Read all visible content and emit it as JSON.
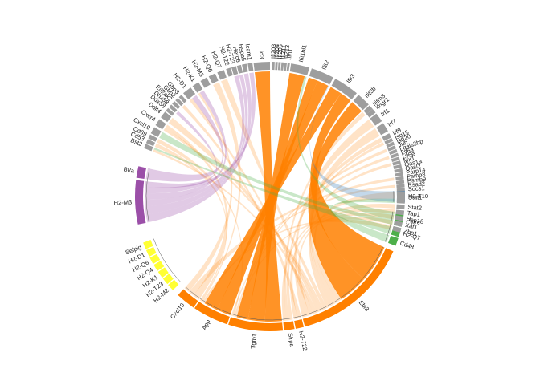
{
  "chart_data": {
    "type": "chord",
    "title": "",
    "grid": false,
    "legend": "none",
    "colors": {
      "receiver": "#9e9e9e",
      "orange": "#ff8000",
      "purple": "#9b4fa8",
      "yellow": "#ffff33",
      "green": "#4daf4a",
      "blue": "#377eb8"
    },
    "sectors": [
      {
        "label": "H2-T10",
        "group": "blue",
        "start": -2.5,
        "end": 2.5
      },
      {
        "label": "Ptprc",
        "group": "green",
        "start": 7,
        "end": 13
      },
      {
        "label": "H2-Q7",
        "group": "green",
        "start": 14,
        "end": 17.5
      },
      {
        "label": "Cd48",
        "group": "green",
        "start": 18,
        "end": 21.5
      },
      {
        "label": "Ebi3",
        "group": "orange",
        "start": 24,
        "end": 75
      },
      {
        "label": "H2-T22",
        "group": "orange",
        "start": 75.5,
        "end": 79
      },
      {
        "label": "Sirpa",
        "group": "orange",
        "start": 79.5,
        "end": 84
      },
      {
        "label": "Tgfb1",
        "group": "orange",
        "start": 84.5,
        "end": 108
      },
      {
        "label": "App",
        "group": "orange",
        "start": 108.5,
        "end": 124
      },
      {
        "label": "Cxcl10",
        "group": "orange",
        "start": 124.5,
        "end": 133
      },
      {
        "label": "H2-M2",
        "group": "yellow",
        "start": 136,
        "end": 139
      },
      {
        "label": "H2-T23",
        "group": "yellow",
        "start": 139.5,
        "end": 142.5
      },
      {
        "label": "H2-K1",
        "group": "yellow",
        "start": 143,
        "end": 146
      },
      {
        "label": "H2-Q4",
        "group": "yellow",
        "start": 146.5,
        "end": 149.5
      },
      {
        "label": "H2-Q6",
        "group": "yellow",
        "start": 150,
        "end": 153
      },
      {
        "label": "H2-D1",
        "group": "yellow",
        "start": 153.5,
        "end": 156.5
      },
      {
        "label": "Selplg",
        "group": "yellow",
        "start": 157,
        "end": 160
      },
      {
        "label": "H2-M3",
        "group": "purple",
        "start": 168,
        "end": 187
      },
      {
        "label": "Bt/a",
        "group": "purple",
        "start": 188,
        "end": 193
      },
      {
        "label": "Bst2",
        "group": "receiver",
        "start": 201,
        "end": 203
      },
      {
        "label": "Cd53",
        "group": "receiver",
        "start": 203.4,
        "end": 205.2
      },
      {
        "label": "Cd69",
        "group": "receiver",
        "start": 205.6,
        "end": 207.4
      },
      {
        "label": "Cxcl10",
        "group": "receiver",
        "start": 208,
        "end": 211
      },
      {
        "label": "Cxcr4",
        "group": "receiver",
        "start": 212,
        "end": 215
      },
      {
        "label": "Ddit4",
        "group": "receiver",
        "start": 216,
        "end": 219
      },
      {
        "label": "Ddx58",
        "group": "receiver",
        "start": 219.5,
        "end": 221
      },
      {
        "label": "Dhx58",
        "group": "receiver",
        "start": 221.5,
        "end": 223
      },
      {
        "label": "Eif2ak2",
        "group": "receiver",
        "start": 223.5,
        "end": 225
      },
      {
        "label": "Gbp2",
        "group": "receiver",
        "start": 225.5,
        "end": 227
      },
      {
        "label": "Gbp3",
        "group": "receiver",
        "start": 227.5,
        "end": 229
      },
      {
        "label": "H2-D1",
        "group": "receiver",
        "start": 230,
        "end": 234
      },
      {
        "label": "H2-K1",
        "group": "receiver",
        "start": 235,
        "end": 238
      },
      {
        "label": "H2-M3",
        "group": "receiver",
        "start": 239,
        "end": 242
      },
      {
        "label": "H2-Q6",
        "group": "receiver",
        "start": 243,
        "end": 246
      },
      {
        "label": "H2-Q7",
        "group": "receiver",
        "start": 247,
        "end": 250
      },
      {
        "label": "H2-T22",
        "group": "receiver",
        "start": 251,
        "end": 253
      },
      {
        "label": "H2-T23",
        "group": "receiver",
        "start": 253.4,
        "end": 255.4
      },
      {
        "label": "Herc6",
        "group": "receiver",
        "start": 255.8,
        "end": 257.6
      },
      {
        "label": "Hspa5",
        "group": "receiver",
        "start": 258,
        "end": 260
      },
      {
        "label": "Icam1",
        "group": "receiver",
        "start": 260.5,
        "end": 262.5
      },
      {
        "label": "Id3",
        "group": "receiver",
        "start": 263,
        "end": 270
      },
      {
        "label": "Ifi203",
        "group": "receiver",
        "start": 271,
        "end": 272
      },
      {
        "label": "Ifi204",
        "group": "receiver",
        "start": 272.3,
        "end": 273.3
      },
      {
        "label": "Ifi205",
        "group": "receiver",
        "start": 273.6,
        "end": 274.6
      },
      {
        "label": "Ifi211",
        "group": "receiver",
        "start": 274.9,
        "end": 275.9
      },
      {
        "label": "Ifi213",
        "group": "receiver",
        "start": 276.2,
        "end": 277.2
      },
      {
        "label": "Ifih1",
        "group": "receiver",
        "start": 277.5,
        "end": 278.5
      },
      {
        "label": "Ifit1bl1",
        "group": "receiver",
        "start": 279,
        "end": 287
      },
      {
        "label": "Ifit2",
        "group": "receiver",
        "start": 288,
        "end": 298
      },
      {
        "label": "Ifit3",
        "group": "receiver",
        "start": 299,
        "end": 310
      },
      {
        "label": "Ifit3b",
        "group": "receiver",
        "start": 311,
        "end": 317
      },
      {
        "label": "Ifitm3",
        "group": "receiver",
        "start": 317.5,
        "end": 319.5
      },
      {
        "label": "Ifngr1",
        "group": "receiver",
        "start": 319.5,
        "end": 321.5
      },
      {
        "label": "Irf1",
        "group": "receiver",
        "start": 322,
        "end": 326
      },
      {
        "label": "Irf7",
        "group": "receiver",
        "start": 327,
        "end": 331
      },
      {
        "label": "Irf9",
        "group": "receiver",
        "start": 332,
        "end": 334
      },
      {
        "label": "Isg15",
        "group": "receiver",
        "start": 334.3,
        "end": 335.7
      },
      {
        "label": "Isg20",
        "group": "receiver",
        "start": 336,
        "end": 337.4
      },
      {
        "label": "Jun",
        "group": "receiver",
        "start": 337.7,
        "end": 339.1
      },
      {
        "label": "Lgals3bp",
        "group": "receiver",
        "start": 339.4,
        "end": 340.8
      },
      {
        "label": "Ly6a",
        "group": "receiver",
        "start": 341.1,
        "end": 342.5
      },
      {
        "label": "Ly6e",
        "group": "receiver",
        "start": 342.8,
        "end": 344.2
      },
      {
        "label": "Mx1",
        "group": "receiver",
        "start": 344.5,
        "end": 345.9
      },
      {
        "label": "Oas1a",
        "group": "receiver",
        "start": 346.2,
        "end": 347.6
      },
      {
        "label": "Oasl2",
        "group": "receiver",
        "start": 347.9,
        "end": 349.3
      },
      {
        "label": "Parp14",
        "group": "receiver",
        "start": 349.6,
        "end": 351
      },
      {
        "label": "Psmb8",
        "group": "receiver",
        "start": 351.3,
        "end": 352.7
      },
      {
        "label": "Psmb9",
        "group": "receiver",
        "start": 353,
        "end": 354.4
      },
      {
        "label": "Rsad2",
        "group": "receiver",
        "start": 354.7,
        "end": 356.1
      },
      {
        "label": "Socs1",
        "group": "receiver",
        "start": 356.4,
        "end": 357.8
      },
      {
        "label": "Stat1",
        "group": "receiver",
        "start": 358,
        "end": 363
      },
      {
        "label": "Stat2",
        "group": "receiver",
        "start": 363.5,
        "end": 365.5
      },
      {
        "label": "Tap1",
        "group": "receiver",
        "start": 366,
        "end": 368
      },
      {
        "label": "Usp18",
        "group": "receiver",
        "start": 368.5,
        "end": 370.5
      },
      {
        "label": "Xaf1",
        "group": "receiver",
        "start": 371,
        "end": 373
      },
      {
        "label": "Zbp1",
        "group": "receiver",
        "start": 373.5,
        "end": 375.5
      }
    ],
    "links": [
      {
        "from": "Tgfb1",
        "to": "Id3",
        "weight": 6
      },
      {
        "from": "Tgfb1",
        "to": "Ifit1bl1",
        "weight": 6
      },
      {
        "from": "Tgfb1",
        "to": "Ifit2",
        "weight": 4
      },
      {
        "from": "App",
        "to": "Ifit2",
        "weight": 5
      },
      {
        "from": "App",
        "to": "Ifit3",
        "weight": 5
      },
      {
        "from": "Ebi3",
        "to": "Ifit3",
        "weight": 5
      },
      {
        "from": "Ebi3",
        "to": "Ifit3b",
        "weight": 4
      },
      {
        "from": "Ebi3",
        "to": "Stat1",
        "weight": 0.6
      },
      {
        "from": "Ebi3",
        "to": "Irf7",
        "weight": 0.6
      },
      {
        "from": "Ebi3",
        "to": "Isg15",
        "weight": 0.5
      },
      {
        "from": "Ebi3",
        "to": "Mx1",
        "weight": 0.5
      },
      {
        "from": "Ebi3",
        "to": "H2-Q7",
        "weight": 0.5
      },
      {
        "from": "Ebi3",
        "to": "Cxcr4",
        "weight": 0.5
      },
      {
        "from": "Ebi3",
        "to": "Ddit4",
        "weight": 0.5
      },
      {
        "from": "Ebi3",
        "to": "Bst2",
        "weight": 0.5
      },
      {
        "from": "Ebi3",
        "to": "H2-D1",
        "weight": 0.5
      },
      {
        "from": "Ebi3",
        "to": "Usp18",
        "weight": 0.5
      },
      {
        "from": "Ebi3",
        "to": "Irf1",
        "weight": 0.5
      },
      {
        "from": "Sirpa",
        "to": "Irf9",
        "weight": 0.5
      },
      {
        "from": "Sirpa",
        "to": "Ifitm3",
        "weight": 0.5
      },
      {
        "from": "Sirpa",
        "to": "Stat2",
        "weight": 0.5
      },
      {
        "from": "H2-T22",
        "to": "Gbp2",
        "weight": 0.5
      },
      {
        "from": "H2-T22",
        "to": "Tap1",
        "weight": 0.5
      },
      {
        "from": "Cxcl10",
        "to": "Cxcr4",
        "weight": 0.6
      },
      {
        "from": "Cxcl10",
        "to": "Psmb8",
        "weight": 0.5
      },
      {
        "from": "Cxcl10",
        "to": "H2-K1",
        "weight": 0.5
      },
      {
        "from": "Tgfb1",
        "to": "Xaf1",
        "weight": 0.5
      },
      {
        "from": "Tgfb1",
        "to": "Ly6a",
        "weight": 0.5
      },
      {
        "from": "Tgfb1",
        "to": "Cd69",
        "weight": 0.5
      },
      {
        "from": "Tgfb1",
        "to": "Jun",
        "weight": 0.5
      },
      {
        "from": "App",
        "to": "Rsad2",
        "weight": 0.5
      },
      {
        "from": "App",
        "to": "Zbp1",
        "weight": 0.5
      },
      {
        "from": "App",
        "to": "H2-Q6",
        "weight": 0.5
      },
      {
        "from": "App",
        "to": "Cd53",
        "weight": 0.5
      },
      {
        "from": "H2-M3",
        "to": "Hspa5",
        "weight": 1.2
      },
      {
        "from": "H2-M3",
        "to": "Herc6",
        "weight": 1.2
      },
      {
        "from": "H2-M3",
        "to": "H2-T23",
        "weight": 1
      },
      {
        "from": "H2-M3",
        "to": "H2-K1",
        "weight": 1
      },
      {
        "from": "H2-M3",
        "to": "Icam1",
        "weight": 1
      },
      {
        "from": "H2-M3",
        "to": "Dhx58",
        "weight": 0.8
      },
      {
        "from": "Bt/a",
        "to": "H2-D1",
        "weight": 0.8
      },
      {
        "from": "Ptprc",
        "to": "Ifit1bl1",
        "weight": 0.8
      },
      {
        "from": "Ptprc",
        "to": "Cxcl10",
        "weight": 0.5
      },
      {
        "from": "H2-Q7",
        "to": "Bst2",
        "weight": 0.4
      },
      {
        "from": "Cd48",
        "to": "Stat1",
        "weight": 0.4
      },
      {
        "from": "H2-T10",
        "to": "Ifit2",
        "weight": 0.3
      }
    ]
  }
}
